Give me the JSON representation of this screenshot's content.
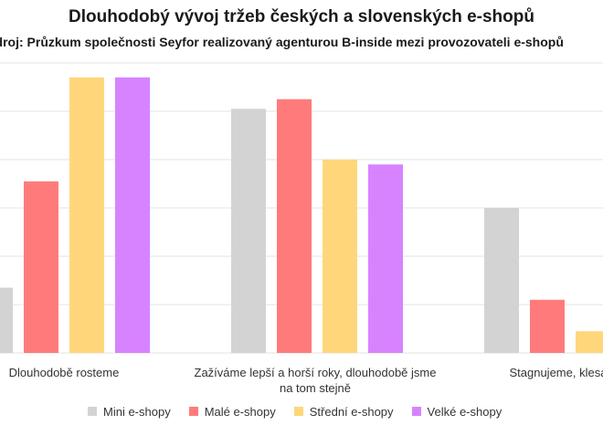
{
  "chart_data": {
    "type": "bar",
    "title": "Dlouhodobý vývoj tržeb českých a slovenských e-shopů",
    "subtitle": "Zdroj: Průzkum společnosti Seyfor realizovaný agenturou B-inside mezi provozovateli e-shopů",
    "categories": [
      "Dlouhodobě rosteme",
      "Zažíváme lepší a horší roky, dlouhodobě jsme na tom stejně",
      "Stagnujeme, klesáme"
    ],
    "category_lines": [
      [
        "Dlouhodobě rosteme"
      ],
      [
        "Zažíváme lepší a horší roky, dlouhodobě jsme",
        "na tom stejně"
      ],
      [
        "Stagnujeme, klesáme"
      ]
    ],
    "series": [
      {
        "name": "Mini e-shopy",
        "color": "#d3d3d3",
        "values": [
          13.5,
          50.5,
          30
        ]
      },
      {
        "name": "Malé e-shopy",
        "color": "#ff7b7b",
        "values": [
          35.5,
          52.5,
          11
        ]
      },
      {
        "name": "Střední e-shopy",
        "color": "#ffd77a",
        "values": [
          57,
          40,
          4.5
        ]
      },
      {
        "name": "Velké e-shopy",
        "color": "#d783ff",
        "values": [
          57,
          39,
          0
        ]
      }
    ],
    "ylim": [
      0,
      60
    ],
    "y_ticks": [
      0,
      10,
      20,
      30,
      40,
      50,
      60
    ],
    "grid": true,
    "legend_position": "bottom"
  }
}
